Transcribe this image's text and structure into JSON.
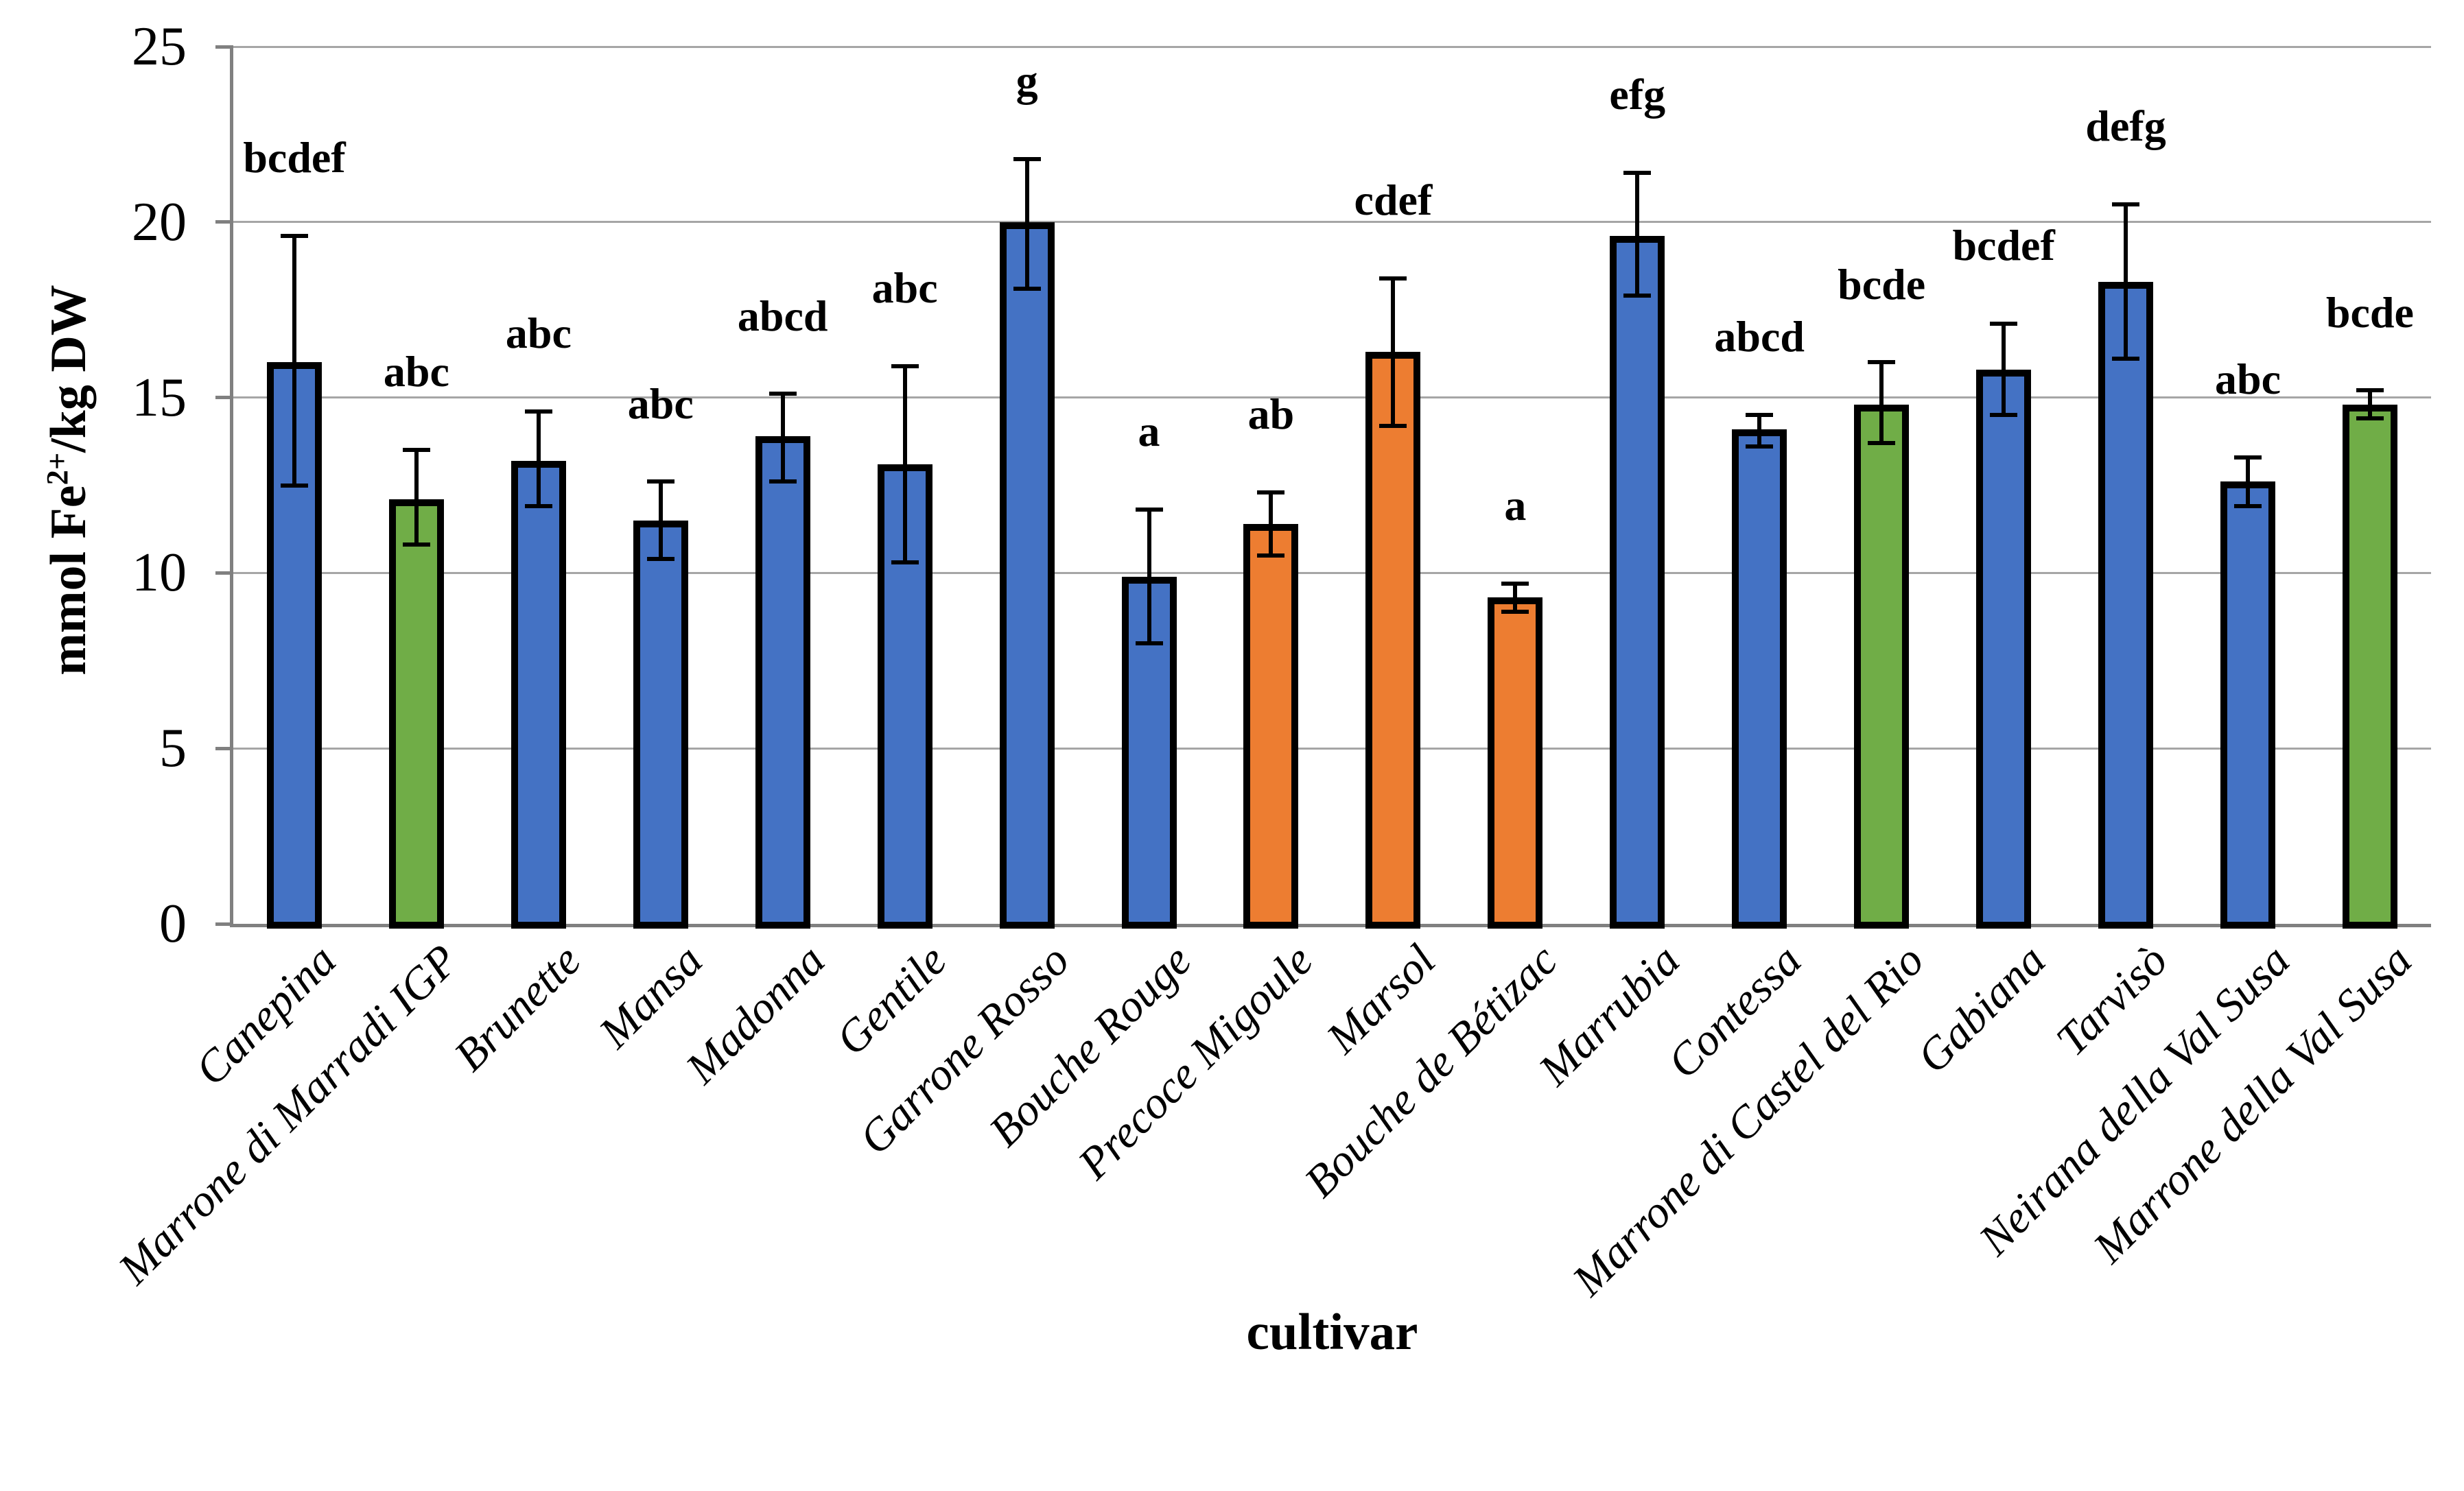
{
  "palette": {
    "blue": "#4472C4",
    "green": "#70AD47",
    "orange": "#ED7D31",
    "bar_border": "#000000",
    "gridline": "#A6A6A6",
    "axis_line": "#808080",
    "error_bar": "#000000",
    "text": "#000000",
    "background": "#FFFFFF"
  },
  "chart_data": {
    "type": "bar",
    "title": "",
    "xlabel": "cultivar",
    "ylabel": "mmol Fe2+/kg DW",
    "ylabel_parts": {
      "pre": "mmol Fe",
      "sup": "2+",
      "post": "/kg DW"
    },
    "ylim": [
      0,
      25
    ],
    "yticks": [
      0,
      5,
      10,
      15,
      20,
      25
    ],
    "grid": true,
    "legend": "none",
    "categories": [
      "Canepina",
      "Marrone di Marradi IGP",
      "Brunette",
      "Mansa",
      "Madonna",
      "Gentile",
      "Garrone Rosso",
      "Bouche Rouge",
      "Precoce Migoule",
      "Marsol",
      "Bouche de Bétizac",
      "Marrubia",
      "Contessa",
      "Marrone di Castel del Rio",
      "Gabiana",
      "Tarvisò",
      "Neirana della Val Susa",
      "Marrone della Val Susa"
    ],
    "values": [
      16.0,
      12.1,
      13.2,
      11.5,
      13.9,
      13.1,
      20.0,
      9.9,
      11.4,
      16.3,
      9.3,
      19.6,
      14.1,
      14.8,
      15.8,
      18.3,
      12.6,
      14.8
    ],
    "error_low": [
      12.5,
      10.8,
      11.9,
      10.4,
      12.6,
      10.3,
      18.1,
      8.0,
      10.5,
      14.2,
      8.9,
      17.9,
      13.6,
      13.7,
      14.5,
      16.1,
      11.9,
      14.4
    ],
    "error_high": [
      19.6,
      13.5,
      14.6,
      12.6,
      15.1,
      15.9,
      21.8,
      11.8,
      12.3,
      18.4,
      9.7,
      21.4,
      14.5,
      16.0,
      17.1,
      20.5,
      13.3,
      15.2
    ],
    "sig_letters": [
      "bcdef",
      "abc",
      "abc",
      "abc",
      "abcd",
      "abc",
      "g",
      "a",
      "ab",
      "cdef",
      "a",
      "efg",
      "abcd",
      "bcde",
      "bcdef",
      "defg",
      "abc",
      "bcde"
    ],
    "bar_color_keys": [
      "blue",
      "green",
      "blue",
      "blue",
      "blue",
      "blue",
      "blue",
      "blue",
      "orange",
      "orange",
      "orange",
      "blue",
      "blue",
      "green",
      "blue",
      "blue",
      "blue",
      "green"
    ]
  }
}
